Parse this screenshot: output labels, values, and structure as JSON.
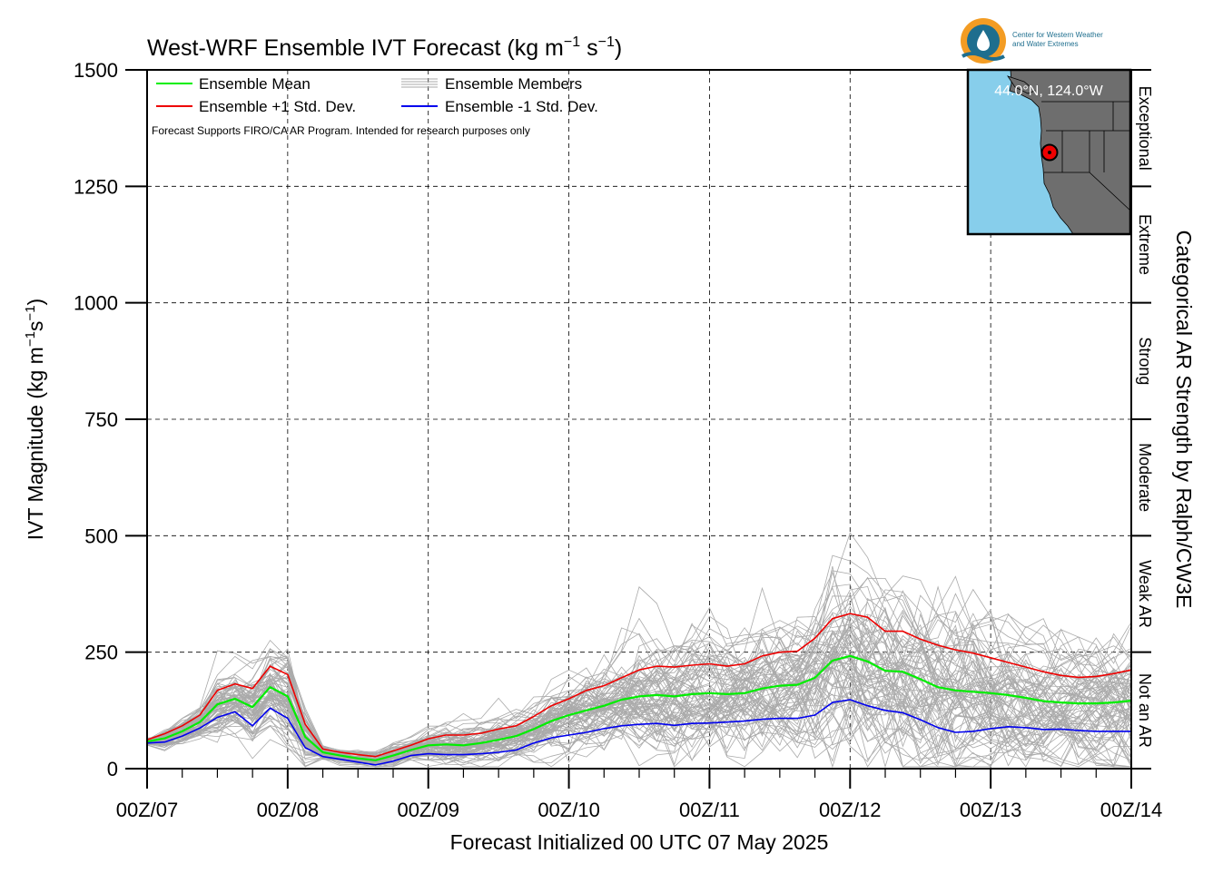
{
  "chart_data": {
    "type": "line",
    "title_text": "West-WRF Ensemble IVT Forecast (kg m",
    "title_sup1": "−1",
    "title_mid": " s",
    "title_sup2": "−1",
    "title_end": ")",
    "ylabel_text": "IVT Magnitude (kg m",
    "ylabel_sup1": "−1",
    "ylabel_mid": "s",
    "ylabel_sup2": "−1",
    "ylabel_end": ")",
    "xlabel": "Forecast Initialized 00 UTC 07 May 2025",
    "right_label": "Categorical AR Strength by Ralph/CW3E",
    "note": "Forecast Supports FIRO/CA AR Program. Intended for research purposes only",
    "ylim": [
      0,
      1500
    ],
    "yticks": [
      0,
      250,
      500,
      750,
      1000,
      1250,
      1500
    ],
    "xlim_hours": [
      0,
      168
    ],
    "xtick_hours": [
      0,
      24,
      48,
      72,
      96,
      120,
      144,
      168
    ],
    "xtick_labels": [
      "00Z/07",
      "00Z/08",
      "00Z/09",
      "00Z/10",
      "00Z/11",
      "00Z/12",
      "00Z/13",
      "00Z/14"
    ],
    "grid": "dashed",
    "legend_position": "top-left",
    "legend": {
      "mean": "Ensemble Mean",
      "plus": "Ensemble +1 Std. Dev.",
      "members": "Ensemble Members",
      "minus": "Ensemble -1 Std. Dev."
    },
    "categories_ar": [
      {
        "label": "Not an AR",
        "from": 0,
        "to": 250
      },
      {
        "label": "Weak AR",
        "from": 250,
        "to": 500
      },
      {
        "label": "Moderate",
        "from": 500,
        "to": 750
      },
      {
        "label": "Strong",
        "from": 750,
        "to": 1000
      },
      {
        "label": "Extreme",
        "from": 1000,
        "to": 1250
      },
      {
        "label": "Exceptional",
        "from": 1250,
        "to": 1500
      }
    ],
    "colors": {
      "mean": "#00ee00",
      "plus": "#ee0000",
      "minus": "#0000ee",
      "members": "#aaaaaa"
    },
    "series": [
      {
        "name": "Ensemble +1 Std. Dev.",
        "x": [
          0,
          3,
          6,
          9,
          12,
          15,
          18,
          21,
          24,
          27,
          30,
          33,
          36,
          39,
          42,
          45,
          48,
          51,
          54,
          57,
          60,
          63,
          66,
          69,
          72,
          75,
          78,
          81,
          84,
          87,
          90,
          93,
          96,
          99,
          102,
          105,
          108,
          111,
          114,
          117,
          120,
          123,
          126,
          129,
          132,
          135,
          138,
          141,
          144,
          147,
          150,
          153,
          156,
          159,
          162,
          165,
          168
        ],
        "values": [
          62,
          75,
          92,
          115,
          168,
          182,
          172,
          220,
          202,
          95,
          42,
          35,
          30,
          26,
          38,
          50,
          64,
          72,
          72,
          76,
          85,
          92,
          112,
          135,
          150,
          168,
          178,
          195,
          212,
          220,
          218,
          222,
          225,
          220,
          225,
          242,
          250,
          252,
          280,
          322,
          333,
          325,
          295,
          295,
          278,
          265,
          255,
          248,
          238,
          228,
          218,
          208,
          200,
          196,
          198,
          204,
          212
        ]
      },
      {
        "name": "Ensemble Mean",
        "x": [
          0,
          3,
          6,
          9,
          12,
          15,
          18,
          21,
          24,
          27,
          30,
          33,
          36,
          39,
          42,
          45,
          48,
          51,
          54,
          57,
          60,
          63,
          66,
          69,
          72,
          75,
          78,
          81,
          84,
          87,
          90,
          93,
          96,
          99,
          102,
          105,
          108,
          111,
          114,
          117,
          120,
          123,
          126,
          129,
          132,
          135,
          138,
          141,
          144,
          147,
          150,
          153,
          156,
          159,
          162,
          165,
          168
        ],
        "values": [
          58,
          65,
          80,
          100,
          138,
          150,
          132,
          175,
          155,
          68,
          35,
          28,
          22,
          18,
          28,
          40,
          50,
          52,
          50,
          55,
          62,
          70,
          85,
          102,
          115,
          125,
          135,
          148,
          155,
          158,
          155,
          160,
          162,
          160,
          162,
          172,
          178,
          180,
          195,
          232,
          242,
          230,
          210,
          208,
          192,
          175,
          168,
          165,
          162,
          158,
          152,
          145,
          142,
          140,
          140,
          142,
          146
        ]
      },
      {
        "name": "Ensemble -1 Std. Dev.",
        "x": [
          0,
          3,
          6,
          9,
          12,
          15,
          18,
          21,
          24,
          27,
          30,
          33,
          36,
          39,
          42,
          45,
          48,
          51,
          54,
          57,
          60,
          63,
          66,
          69,
          72,
          75,
          78,
          81,
          84,
          87,
          90,
          93,
          96,
          99,
          102,
          105,
          108,
          111,
          114,
          117,
          120,
          123,
          126,
          129,
          132,
          135,
          138,
          141,
          144,
          147,
          150,
          153,
          156,
          159,
          162,
          165,
          168
        ],
        "values": [
          55,
          57,
          70,
          87,
          110,
          122,
          92,
          130,
          108,
          45,
          26,
          20,
          14,
          8,
          16,
          28,
          32,
          30,
          30,
          32,
          35,
          40,
          55,
          66,
          72,
          78,
          86,
          92,
          95,
          97,
          93,
          97,
          98,
          100,
          102,
          106,
          108,
          108,
          115,
          142,
          148,
          135,
          125,
          120,
          105,
          88,
          78,
          80,
          86,
          90,
          88,
          84,
          85,
          82,
          80,
          80,
          80
        ]
      }
    ]
  },
  "map_inset": {
    "location_label": "44.0°N, 124.0°W",
    "land_color": "#6e6e6e",
    "water_color": "#87ceeb"
  },
  "logo": {
    "line1": "Center for Western Weather",
    "line2": "and Water Extremes"
  }
}
